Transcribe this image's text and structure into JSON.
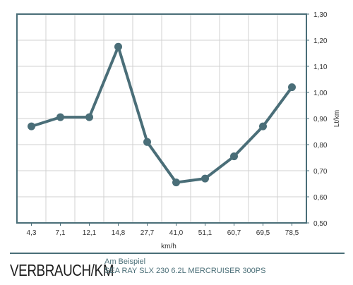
{
  "chart_data": {
    "type": "line",
    "categories": [
      "4,3",
      "7,1",
      "12,1",
      "14,8",
      "27,7",
      "41,0",
      "51,1",
      "60,7",
      "69,5",
      "78,5"
    ],
    "series": [
      {
        "values": [
          0.87,
          0.905,
          0.905,
          1.175,
          0.81,
          0.655,
          0.67,
          0.755,
          0.87,
          1.02
        ]
      }
    ],
    "xlabel": "km/h",
    "ylabel": "Lt/km",
    "ylim": [
      0.5,
      1.3
    ],
    "yticks": [
      "0,50",
      "0,60",
      "0,70",
      "0,80",
      "0,90",
      "1,00",
      "1,10",
      "1,20",
      "1,30"
    ],
    "y_axis_side": "right",
    "grid": true,
    "colors": {
      "line": "#4a6e78",
      "grid": "#d0d0d0",
      "frame": "#4a6e78"
    }
  },
  "caption": {
    "title": "VERBRAUCH/KM",
    "subtitle_line1": "Am Beispiel",
    "subtitle_line2": "SEA RAY SLX 230 6.2L MERCRUISER 300PS"
  }
}
